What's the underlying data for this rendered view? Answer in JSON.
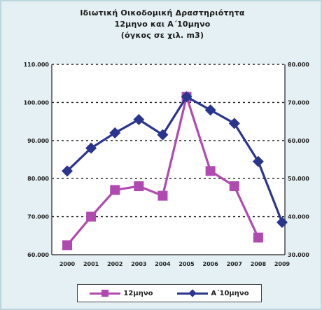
{
  "chart_data": {
    "type": "line",
    "title": "Ιδιωτική Οικοδομική Δραστηριότητα",
    "subtitle_lines": [
      "12μηνο και Α΄10μηνο",
      "(όγκος σε χιλ. m3)"
    ],
    "x": [
      "2000",
      "2001",
      "2002",
      "2003",
      "2004",
      "2005",
      "2006",
      "2007",
      "2008",
      "2009"
    ],
    "series": [
      {
        "name": "12μηνο",
        "axis": "left",
        "color": "#b04ab0",
        "marker": "square",
        "values": [
          62500,
          70000,
          77000,
          78000,
          75500,
          101500,
          82000,
          78000,
          64500,
          null
        ]
      },
      {
        "name": "Α΄10μηνο",
        "axis": "right",
        "color": "#2a3590",
        "marker": "diamond",
        "values": [
          52000,
          58000,
          62000,
          65500,
          61500,
          71500,
          68000,
          64500,
          54500,
          38500
        ]
      }
    ],
    "ylim_left": [
      60000,
      110000
    ],
    "ylim_right": [
      30000,
      80000
    ],
    "yticks_left": [
      "60.000",
      "70.000",
      "80.000",
      "90.000",
      "100.000",
      "110.000"
    ],
    "yticks_right": [
      "30.000",
      "40.000",
      "50.000",
      "60.000",
      "70.000",
      "80.000"
    ],
    "grid": "horizontal dotted",
    "legend_position": "bottom"
  }
}
